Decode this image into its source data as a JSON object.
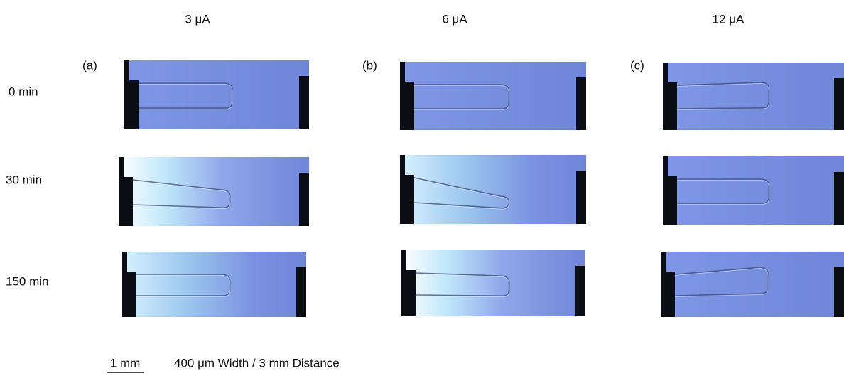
{
  "columns": [
    "3 μA",
    "6 μA",
    "12 μA"
  ],
  "rows": [
    "0 min",
    "30 min",
    "150 min"
  ],
  "panels": [
    "(a)",
    "(b)",
    "(c)"
  ],
  "scale_bar": "1 mm",
  "caption": "400 μm Width / 3 mm Distance"
}
